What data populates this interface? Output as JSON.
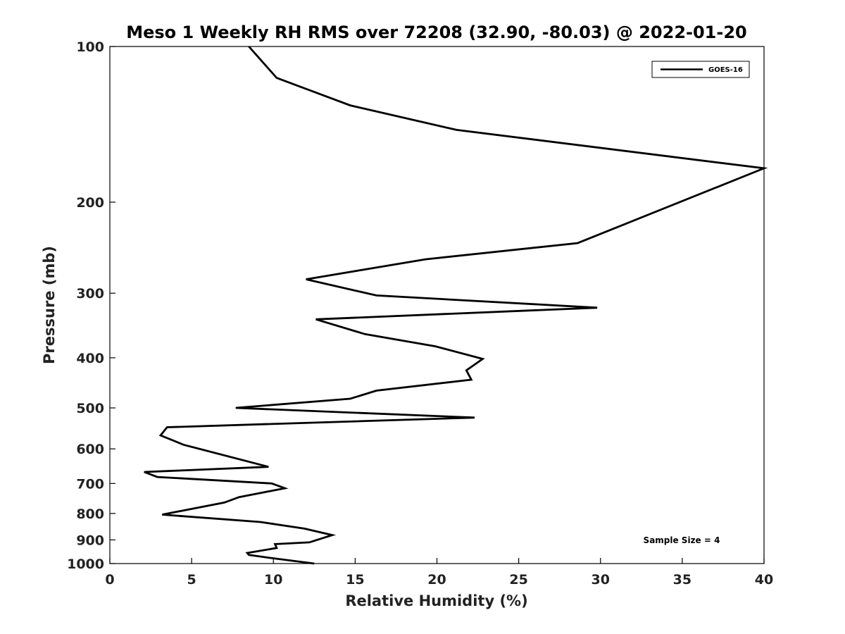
{
  "chart_data": {
    "type": "line",
    "title": "Meso 1 Weekly RH RMS over 72208 (32.90, -80.03) @ 2022-01-20",
    "xlabel": "Relative Humidity (%)",
    "ylabel": "Pressure (mb)",
    "xlim": [
      0,
      40
    ],
    "ylim": [
      1000,
      100
    ],
    "yscale": "log",
    "xticks": [
      0,
      5,
      10,
      15,
      20,
      25,
      30,
      35,
      40
    ],
    "yticks": [
      100,
      200,
      300,
      400,
      500,
      600,
      700,
      800,
      900,
      1000
    ],
    "grid": false,
    "legend_position": "top-right",
    "line_color": "#000000",
    "series": [
      {
        "name": "GOES-16",
        "x": [
          8.5,
          10.2,
          14.7,
          21.2,
          40.0,
          40.0,
          28.6,
          19.3,
          12.0,
          16.3,
          29.8,
          12.6,
          15.6,
          19.9,
          22.8,
          21.8,
          22.1,
          16.3,
          14.7,
          7.7,
          22.3,
          3.5,
          3.1,
          4.5,
          9.7,
          2.1,
          2.9,
          9.9,
          10.7,
          7.9,
          7.0,
          3.2,
          9.2,
          11.9,
          13.6,
          12.2,
          10.1,
          10.2,
          8.4,
          8.5,
          9.9,
          12.5
        ],
        "y": [
          100,
          115,
          130,
          145,
          172,
          172,
          240,
          258,
          282,
          303,
          320,
          337,
          360,
          380,
          402,
          423,
          441,
          463,
          480,
          500,
          522,
          545,
          565,
          589,
          650,
          665,
          680,
          700,
          715,
          744,
          762,
          804,
          831,
          856,
          881,
          910,
          917,
          933,
          954,
          962,
          976,
          1000
        ]
      }
    ],
    "annotations": [
      {
        "text": "Sample Size = 4"
      }
    ]
  }
}
